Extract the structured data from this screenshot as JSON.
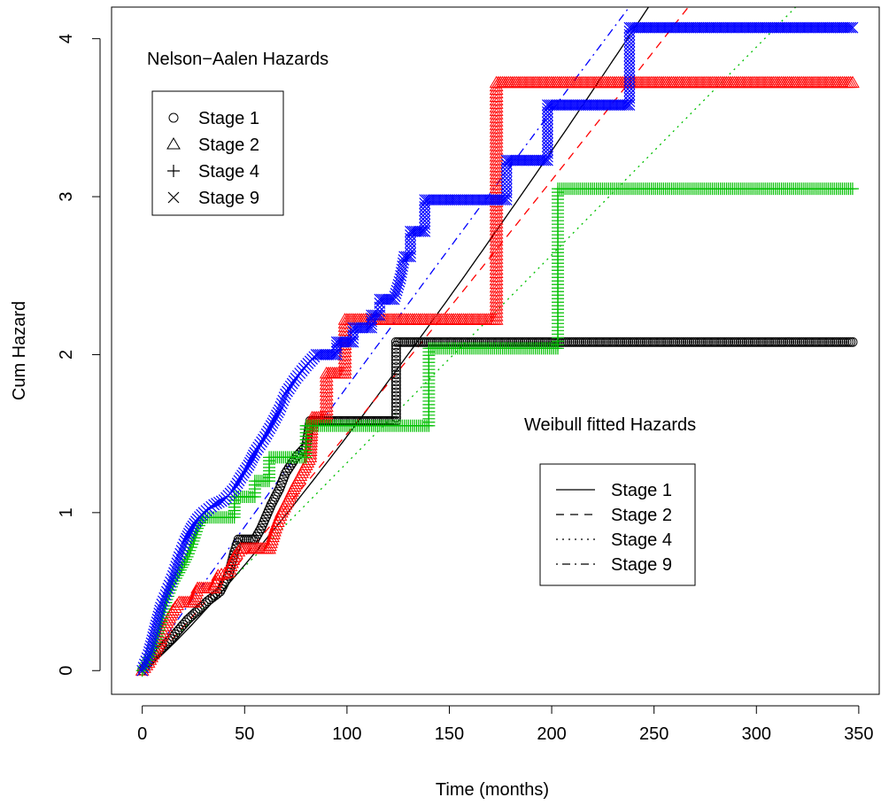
{
  "chart_data": {
    "type": "line",
    "xlabel": "Time (months)",
    "ylabel": "Cum Hazard",
    "xlim": [
      -15,
      360
    ],
    "ylim": [
      -0.15,
      4.2
    ],
    "x_ticks": [
      0,
      50,
      100,
      150,
      200,
      250,
      300,
      350
    ],
    "y_ticks": [
      0,
      1,
      2,
      3,
      4
    ],
    "grid": false,
    "annotations": {
      "nelson_title": "Nelson−Aalen Hazards",
      "weibull_title": "Weibull fitted Hazards"
    },
    "legend_points": {
      "placement": "top-left",
      "entries": [
        {
          "label": "Stage 1",
          "marker": "circle",
          "color": "#000000"
        },
        {
          "label": "Stage 2",
          "marker": "triangle",
          "color": "#000000"
        },
        {
          "label": "Stage 4",
          "marker": "plus",
          "color": "#000000"
        },
        {
          "label": "Stage 9",
          "marker": "cross",
          "color": "#000000"
        }
      ]
    },
    "legend_lines": {
      "placement": "center-right",
      "entries": [
        {
          "label": "Stage 1",
          "dash": "solid",
          "color": "#000000"
        },
        {
          "label": "Stage 2",
          "dash": "dashed",
          "color": "#000000"
        },
        {
          "label": "Stage 4",
          "dash": "dotted",
          "color": "#000000"
        },
        {
          "label": "Stage 9",
          "dash": "dotdash",
          "color": "#000000"
        }
      ]
    },
    "series": [
      {
        "label": "Stage 1",
        "color": "#000000",
        "marker": "circle",
        "dash": "solid",
        "weibull": {
          "scale": 71.0,
          "shape": 1.15
        },
        "steps": [
          [
            0,
            0
          ],
          [
            3,
            0.05
          ],
          [
            6,
            0.1
          ],
          [
            10,
            0.15
          ],
          [
            14,
            0.2
          ],
          [
            18,
            0.26
          ],
          [
            22,
            0.32
          ],
          [
            27,
            0.38
          ],
          [
            32,
            0.44
          ],
          [
            38,
            0.5
          ],
          [
            42,
            0.6
          ],
          [
            45,
            0.75
          ],
          [
            47,
            0.83
          ],
          [
            55,
            0.83
          ],
          [
            58,
            0.9
          ],
          [
            63,
            1.05
          ],
          [
            67,
            1.15
          ],
          [
            70,
            1.25
          ],
          [
            75,
            1.35
          ],
          [
            80,
            1.42
          ],
          [
            82,
            1.58
          ],
          [
            124,
            1.58
          ],
          [
            124,
            2.08
          ],
          [
            347,
            2.08
          ]
        ]
      },
      {
        "label": "Stage 2",
        "color": "#ff0000",
        "marker": "triangle",
        "dash": "dashed",
        "weibull": {
          "scale": 68.0,
          "shape": 1.05
        },
        "steps": [
          [
            0,
            0
          ],
          [
            3,
            0.05
          ],
          [
            6,
            0.12
          ],
          [
            9,
            0.2
          ],
          [
            12,
            0.3
          ],
          [
            15,
            0.38
          ],
          [
            18,
            0.43
          ],
          [
            25,
            0.43
          ],
          [
            27,
            0.52
          ],
          [
            35,
            0.52
          ],
          [
            37,
            0.6
          ],
          [
            42,
            0.62
          ],
          [
            45,
            0.72
          ],
          [
            48,
            0.77
          ],
          [
            62,
            0.77
          ],
          [
            65,
            0.9
          ],
          [
            68,
            1.0
          ],
          [
            72,
            1.1
          ],
          [
            75,
            1.18
          ],
          [
            78,
            1.25
          ],
          [
            82,
            1.35
          ],
          [
            83,
            1.6
          ],
          [
            90,
            1.6
          ],
          [
            90,
            1.88
          ],
          [
            99,
            1.88
          ],
          [
            99,
            2.22
          ],
          [
            173,
            2.22
          ],
          [
            173,
            2.72
          ],
          [
            173,
            3.72
          ],
          [
            347,
            3.72
          ]
        ]
      },
      {
        "label": "Stage 4",
        "color": "#00c000",
        "marker": "plus",
        "dash": "dotted",
        "weibull": {
          "scale": 76.0,
          "shape": 1.0
        },
        "steps": [
          [
            0,
            0
          ],
          [
            4,
            0.1
          ],
          [
            7,
            0.2
          ],
          [
            10,
            0.35
          ],
          [
            12,
            0.45
          ],
          [
            15,
            0.55
          ],
          [
            18,
            0.62
          ],
          [
            22,
            0.72
          ],
          [
            25,
            0.82
          ],
          [
            27,
            0.9
          ],
          [
            30,
            0.97
          ],
          [
            45,
            0.97
          ],
          [
            45,
            1.1
          ],
          [
            55,
            1.1
          ],
          [
            55,
            1.2
          ],
          [
            62,
            1.2
          ],
          [
            62,
            1.35
          ],
          [
            80,
            1.35
          ],
          [
            80,
            1.55
          ],
          [
            140,
            1.55
          ],
          [
            140,
            2.04
          ],
          [
            203,
            2.04
          ],
          [
            203,
            3.05
          ],
          [
            347,
            3.05
          ]
        ]
      },
      {
        "label": "Stage 9",
        "color": "#0000ff",
        "marker": "cross",
        "dash": "dotdash",
        "weibull": {
          "scale": 55.0,
          "shape": 0.98
        },
        "steps": [
          [
            0,
            0
          ],
          [
            3,
            0.1
          ],
          [
            6,
            0.25
          ],
          [
            9,
            0.4
          ],
          [
            12,
            0.5
          ],
          [
            15,
            0.6
          ],
          [
            18,
            0.72
          ],
          [
            21,
            0.82
          ],
          [
            24,
            0.9
          ],
          [
            27,
            0.96
          ],
          [
            30,
            1.0
          ],
          [
            35,
            1.05
          ],
          [
            40,
            1.08
          ],
          [
            45,
            1.15
          ],
          [
            48,
            1.22
          ],
          [
            52,
            1.3
          ],
          [
            55,
            1.38
          ],
          [
            60,
            1.48
          ],
          [
            63,
            1.55
          ],
          [
            67,
            1.65
          ],
          [
            70,
            1.75
          ],
          [
            75,
            1.85
          ],
          [
            80,
            1.93
          ],
          [
            85,
            2.0
          ],
          [
            95,
            2.0
          ],
          [
            95,
            2.08
          ],
          [
            103,
            2.08
          ],
          [
            103,
            2.17
          ],
          [
            112,
            2.17
          ],
          [
            112,
            2.25
          ],
          [
            116,
            2.25
          ],
          [
            116,
            2.35
          ],
          [
            123,
            2.35
          ],
          [
            126,
            2.48
          ],
          [
            128,
            2.62
          ],
          [
            131,
            2.62
          ],
          [
            131,
            2.78
          ],
          [
            138,
            2.78
          ],
          [
            138,
            2.98
          ],
          [
            178,
            2.98
          ],
          [
            178,
            3.23
          ],
          [
            198,
            3.23
          ],
          [
            198,
            3.58
          ],
          [
            238,
            3.58
          ],
          [
            238,
            4.07
          ],
          [
            347,
            4.07
          ]
        ]
      }
    ]
  }
}
